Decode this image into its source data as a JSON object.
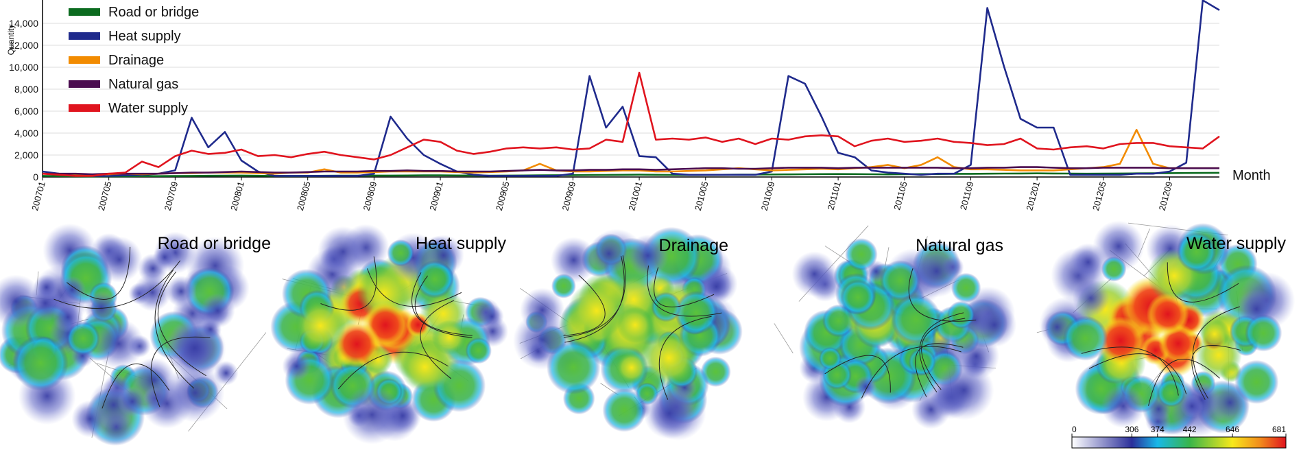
{
  "chart_data": [
    {
      "type": "line",
      "title": "",
      "xlabel": "Month",
      "ylabel": "Quantity",
      "ylim": [
        0,
        16000
      ],
      "yticks": [
        0,
        2000,
        4000,
        6000,
        8000,
        10000,
        12000,
        14000
      ],
      "ytick_labels": [
        "0",
        "2,000",
        "4,000",
        "6,000",
        "8,000",
        "10,000",
        "12,000",
        "14,000"
      ],
      "xtick_labels": [
        "200701",
        "200705",
        "200709",
        "200801",
        "200805",
        "200809",
        "200901",
        "200905",
        "200909",
        "201001",
        "201005",
        "201009",
        "201101",
        "201105",
        "201109",
        "201201",
        "201205",
        "201209"
      ],
      "grid": "horizontal",
      "legend": "top-left",
      "x_start": "2007-01",
      "x": [
        "2007-01",
        "2007-02",
        "2007-03",
        "2007-04",
        "2007-05",
        "2007-06",
        "2007-07",
        "2007-08",
        "2007-09",
        "2007-10",
        "2007-11",
        "2007-12",
        "2008-01",
        "2008-02",
        "2008-03",
        "2008-04",
        "2008-05",
        "2008-06",
        "2008-07",
        "2008-08",
        "2008-09",
        "2008-10",
        "2008-11",
        "2008-12",
        "2009-01",
        "2009-02",
        "2009-03",
        "2009-04",
        "2009-05",
        "2009-06",
        "2009-07",
        "2009-08",
        "2009-09",
        "2009-10",
        "2009-11",
        "2009-12",
        "2010-01",
        "2010-02",
        "2010-03",
        "2010-04",
        "2010-05",
        "2010-06",
        "2010-07",
        "2010-08",
        "2010-09",
        "2010-10",
        "2010-11",
        "2010-12",
        "2011-01",
        "2011-02",
        "2011-03",
        "2011-04",
        "2011-05",
        "2011-06",
        "2011-07",
        "2011-08",
        "2011-09",
        "2011-10",
        "2011-11",
        "2011-12",
        "2012-01",
        "2012-02",
        "2012-03",
        "2012-04",
        "2012-05",
        "2012-06",
        "2012-07",
        "2012-08",
        "2012-09",
        "2012-10",
        "2012-11",
        "2012-12"
      ],
      "series": [
        {
          "name": "Road or bridge",
          "color": "#0b6b1f",
          "values": [
            100,
            80,
            60,
            50,
            60,
            70,
            80,
            80,
            90,
            100,
            110,
            120,
            130,
            110,
            100,
            90,
            100,
            110,
            120,
            120,
            130,
            130,
            140,
            150,
            150,
            140,
            130,
            120,
            130,
            140,
            150,
            160,
            170,
            180,
            190,
            200,
            210,
            200,
            190,
            180,
            190,
            200,
            210,
            220,
            230,
            240,
            250,
            260,
            270,
            260,
            250,
            240,
            250,
            260,
            270,
            280,
            290,
            300,
            310,
            320,
            330,
            320,
            310,
            300,
            310,
            320,
            330,
            340,
            350,
            360,
            370,
            380
          ]
        },
        {
          "name": "Heat supply",
          "color": "#1f2a8c",
          "values": [
            500,
            300,
            200,
            100,
            100,
            150,
            200,
            300,
            600,
            5400,
            2700,
            4100,
            1500,
            500,
            100,
            100,
            100,
            100,
            100,
            100,
            300,
            5500,
            3500,
            2000,
            1200,
            500,
            200,
            100,
            100,
            100,
            100,
            100,
            300,
            9200,
            4500,
            6400,
            1900,
            1800,
            300,
            200,
            200,
            200,
            200,
            200,
            500,
            9200,
            8500,
            5500,
            2200,
            1800,
            600,
            400,
            300,
            200,
            300,
            300,
            1100,
            15400,
            10100,
            5300,
            4500,
            4500,
            200,
            200,
            200,
            200,
            300,
            300,
            500,
            1300,
            16100,
            15200
          ]
        },
        {
          "name": "Drainage",
          "color": "#f28b00",
          "values": [
            300,
            250,
            200,
            200,
            250,
            300,
            250,
            300,
            350,
            350,
            400,
            400,
            400,
            350,
            300,
            400,
            400,
            700,
            400,
            400,
            450,
            500,
            500,
            500,
            500,
            450,
            400,
            450,
            500,
            600,
            1200,
            600,
            500,
            500,
            550,
            600,
            600,
            500,
            500,
            550,
            600,
            700,
            800,
            700,
            600,
            650,
            700,
            750,
            700,
            800,
            900,
            1100,
            800,
            1100,
            1800,
            900,
            700,
            700,
            650,
            600,
            600,
            600,
            700,
            800,
            900,
            1200,
            4300,
            1200,
            800,
            800,
            800,
            800
          ]
        },
        {
          "name": "Natural gas",
          "color": "#4a0c4f",
          "values": [
            300,
            300,
            300,
            250,
            300,
            300,
            300,
            300,
            350,
            400,
            400,
            450,
            500,
            450,
            400,
            400,
            450,
            500,
            500,
            500,
            550,
            550,
            600,
            550,
            550,
            500,
            500,
            500,
            550,
            600,
            650,
            600,
            600,
            650,
            650,
            700,
            700,
            650,
            700,
            750,
            800,
            800,
            750,
            750,
            800,
            850,
            850,
            850,
            800,
            850,
            850,
            850,
            850,
            850,
            850,
            800,
            800,
            850,
            850,
            900,
            900,
            850,
            800,
            800,
            850,
            850,
            850,
            850,
            800,
            800,
            800,
            800
          ]
        },
        {
          "name": "Water supply",
          "color": "#e0141e",
          "values": [
            300,
            200,
            100,
            100,
            300,
            400,
            1400,
            900,
            1900,
            2400,
            2100,
            2200,
            2500,
            1900,
            2000,
            1800,
            2100,
            2300,
            2000,
            1800,
            1600,
            2000,
            2700,
            3400,
            3200,
            2400,
            2100,
            2300,
            2600,
            2700,
            2600,
            2700,
            2500,
            2600,
            3400,
            3200,
            9500,
            3400,
            3500,
            3400,
            3600,
            3200,
            3500,
            3000,
            3500,
            3400,
            3700,
            3800,
            3700,
            2800,
            3300,
            3500,
            3200,
            3300,
            3500,
            3200,
            3100,
            2900,
            3000,
            3500,
            2600,
            2500,
            2700,
            2800,
            2600,
            3000,
            3100,
            3100,
            2800,
            2700,
            2600,
            3700
          ]
        }
      ]
    },
    {
      "type": "heatmap",
      "panels": [
        "Road or bridge",
        "Heat supply",
        "Drainage",
        "Natural gas",
        "Water supply"
      ],
      "intensity": [
        0.25,
        0.85,
        0.55,
        0.45,
        0.9
      ],
      "colorbar": {
        "ticks": [
          0,
          306,
          374,
          442,
          646,
          681
        ],
        "labels": [
          "0",
          "306",
          "374",
          "442",
          "646",
          "681"
        ],
        "colors": [
          "#ffffff",
          "#2b2f9a",
          "#19b8e8",
          "#38b54a",
          "#f7e81b",
          "#f28b1c",
          "#e0141e"
        ]
      }
    }
  ]
}
